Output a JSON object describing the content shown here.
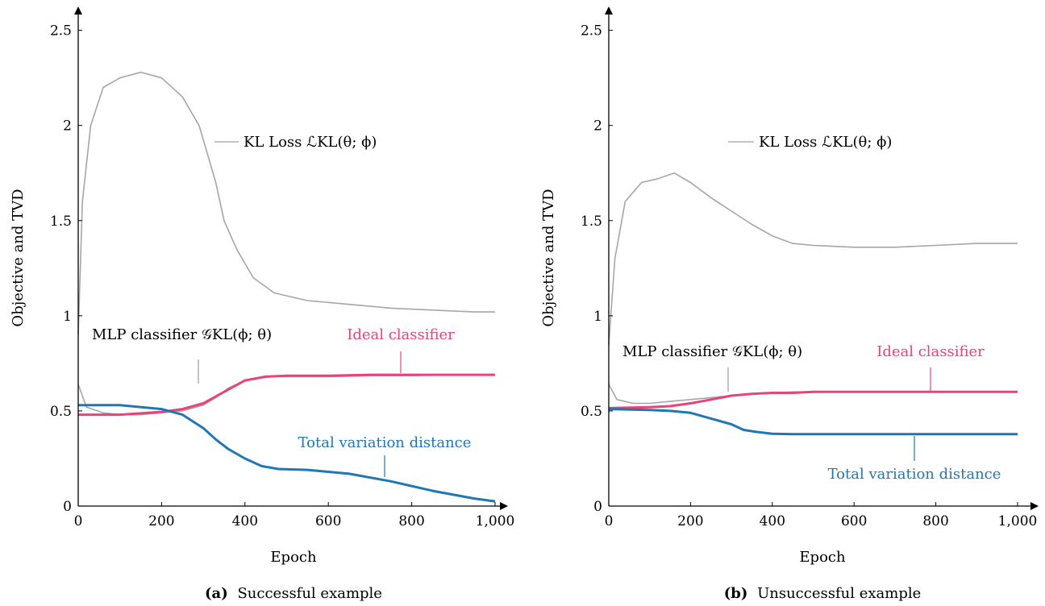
{
  "panels": [
    {
      "caption_label": "(a)",
      "caption_text": "Successful example",
      "chart_data": {
        "type": "line",
        "xlabel": "Epoch",
        "ylabel": "Objective and TVD",
        "xlim": [
          0,
          1000
        ],
        "ylim": [
          0,
          2.6
        ],
        "xticks": [
          "0",
          "200",
          "400",
          "600",
          "800",
          "1,000"
        ],
        "yticks": [
          "0",
          "0.5",
          "1",
          "1.5",
          "2",
          "2.5"
        ],
        "grid": false,
        "annotations": {
          "kl": "KL Loss ℒKL(θ; ϕ)",
          "mlp": "MLP classifier 𝒢KL(ϕ; θ)",
          "ideal": "Ideal classifier",
          "tvd": "Total variation distance"
        },
        "series": [
          {
            "color": "#a6a6a6",
            "x": [
              0,
              10,
              30,
              60,
              100,
              150,
              200,
              250,
              290,
              310,
              330,
              350,
              380,
              420,
              470,
              550,
              650,
              750,
              850,
              950,
              1000
            ],
            "values": [
              0.9,
              1.6,
              2.0,
              2.2,
              2.25,
              2.28,
              2.25,
              2.15,
              2.0,
              1.85,
              1.7,
              1.5,
              1.35,
              1.2,
              1.12,
              1.08,
              1.06,
              1.04,
              1.03,
              1.02,
              1.02
            ]
          },
          {
            "color": "#a6a6a6",
            "x": [
              0,
              20,
              60,
              100,
              150,
              200,
              250,
              300,
              330,
              360,
              400,
              450,
              500,
              600,
              700,
              800,
              900,
              1000
            ],
            "values": [
              0.64,
              0.52,
              0.49,
              0.48,
              0.48,
              0.49,
              0.5,
              0.53,
              0.57,
              0.62,
              0.66,
              0.68,
              0.68,
              0.68,
              0.685,
              0.685,
              0.69,
              0.69
            ]
          },
          {
            "color": "#e8437a",
            "x": [
              0,
              100,
              200,
              250,
              300,
              350,
              400,
              450,
              500,
              600,
              700,
              800,
              900,
              1000
            ],
            "values": [
              0.48,
              0.48,
              0.495,
              0.51,
              0.54,
              0.6,
              0.66,
              0.68,
              0.685,
              0.685,
              0.69,
              0.69,
              0.69,
              0.69
            ]
          },
          {
            "color": "#1f77b4",
            "x": [
              0,
              100,
              200,
              250,
              300,
              330,
              360,
              400,
              440,
              480,
              550,
              650,
              750,
              850,
              950,
              1000
            ],
            "values": [
              0.53,
              0.53,
              0.51,
              0.48,
              0.41,
              0.35,
              0.3,
              0.25,
              0.21,
              0.195,
              0.19,
              0.17,
              0.13,
              0.08,
              0.04,
              0.025
            ]
          }
        ]
      }
    },
    {
      "caption_label": "(b)",
      "caption_text": "Unsuccessful example",
      "chart_data": {
        "type": "line",
        "xlabel": "Epoch",
        "ylabel": "Objective and TVD",
        "xlim": [
          0,
          1000
        ],
        "ylim": [
          0,
          2.6
        ],
        "xticks": [
          "0",
          "200",
          "400",
          "600",
          "800",
          "1,000"
        ],
        "yticks": [
          "0",
          "0.5",
          "1",
          "1.5",
          "2",
          "2.5"
        ],
        "grid": false,
        "annotations": {
          "kl": "KL Loss ℒKL(θ; ϕ)",
          "mlp": "MLP classifier 𝒢KL(ϕ; θ)",
          "ideal": "Ideal classifier",
          "tvd": "Total variation distance"
        },
        "series": [
          {
            "color": "#a6a6a6",
            "x": [
              0,
              15,
              40,
              80,
              120,
              160,
              200,
              250,
              300,
              350,
              400,
              450,
              500,
              600,
              700,
              800,
              900,
              1000
            ],
            "values": [
              0.85,
              1.3,
              1.6,
              1.7,
              1.72,
              1.75,
              1.7,
              1.62,
              1.55,
              1.48,
              1.42,
              1.38,
              1.37,
              1.36,
              1.36,
              1.37,
              1.38,
              1.38
            ]
          },
          {
            "color": "#a6a6a6",
            "x": [
              0,
              20,
              60,
              100,
              150,
              200,
              250,
              300,
              350,
              400,
              450,
              500,
              600,
              700,
              800,
              900,
              1000
            ],
            "values": [
              0.64,
              0.56,
              0.54,
              0.54,
              0.55,
              0.56,
              0.57,
              0.58,
              0.59,
              0.595,
              0.6,
              0.6,
              0.6,
              0.6,
              0.6,
              0.6,
              0.6
            ]
          },
          {
            "color": "#e8437a",
            "x": [
              0,
              100,
              150,
              200,
              250,
              300,
              350,
              400,
              450,
              500,
              600,
              700,
              800,
              900,
              1000
            ],
            "values": [
              0.515,
              0.52,
              0.525,
              0.54,
              0.56,
              0.58,
              0.59,
              0.595,
              0.595,
              0.6,
              0.6,
              0.6,
              0.6,
              0.6,
              0.6
            ]
          },
          {
            "color": "#1f77b4",
            "x": [
              0,
              100,
              150,
              200,
              250,
              300,
              330,
              360,
              400,
              450,
              500,
              600,
              700,
              800,
              900,
              1000
            ],
            "values": [
              0.51,
              0.505,
              0.5,
              0.49,
              0.46,
              0.43,
              0.4,
              0.39,
              0.38,
              0.378,
              0.378,
              0.378,
              0.378,
              0.378,
              0.378,
              0.378
            ]
          }
        ]
      }
    }
  ]
}
